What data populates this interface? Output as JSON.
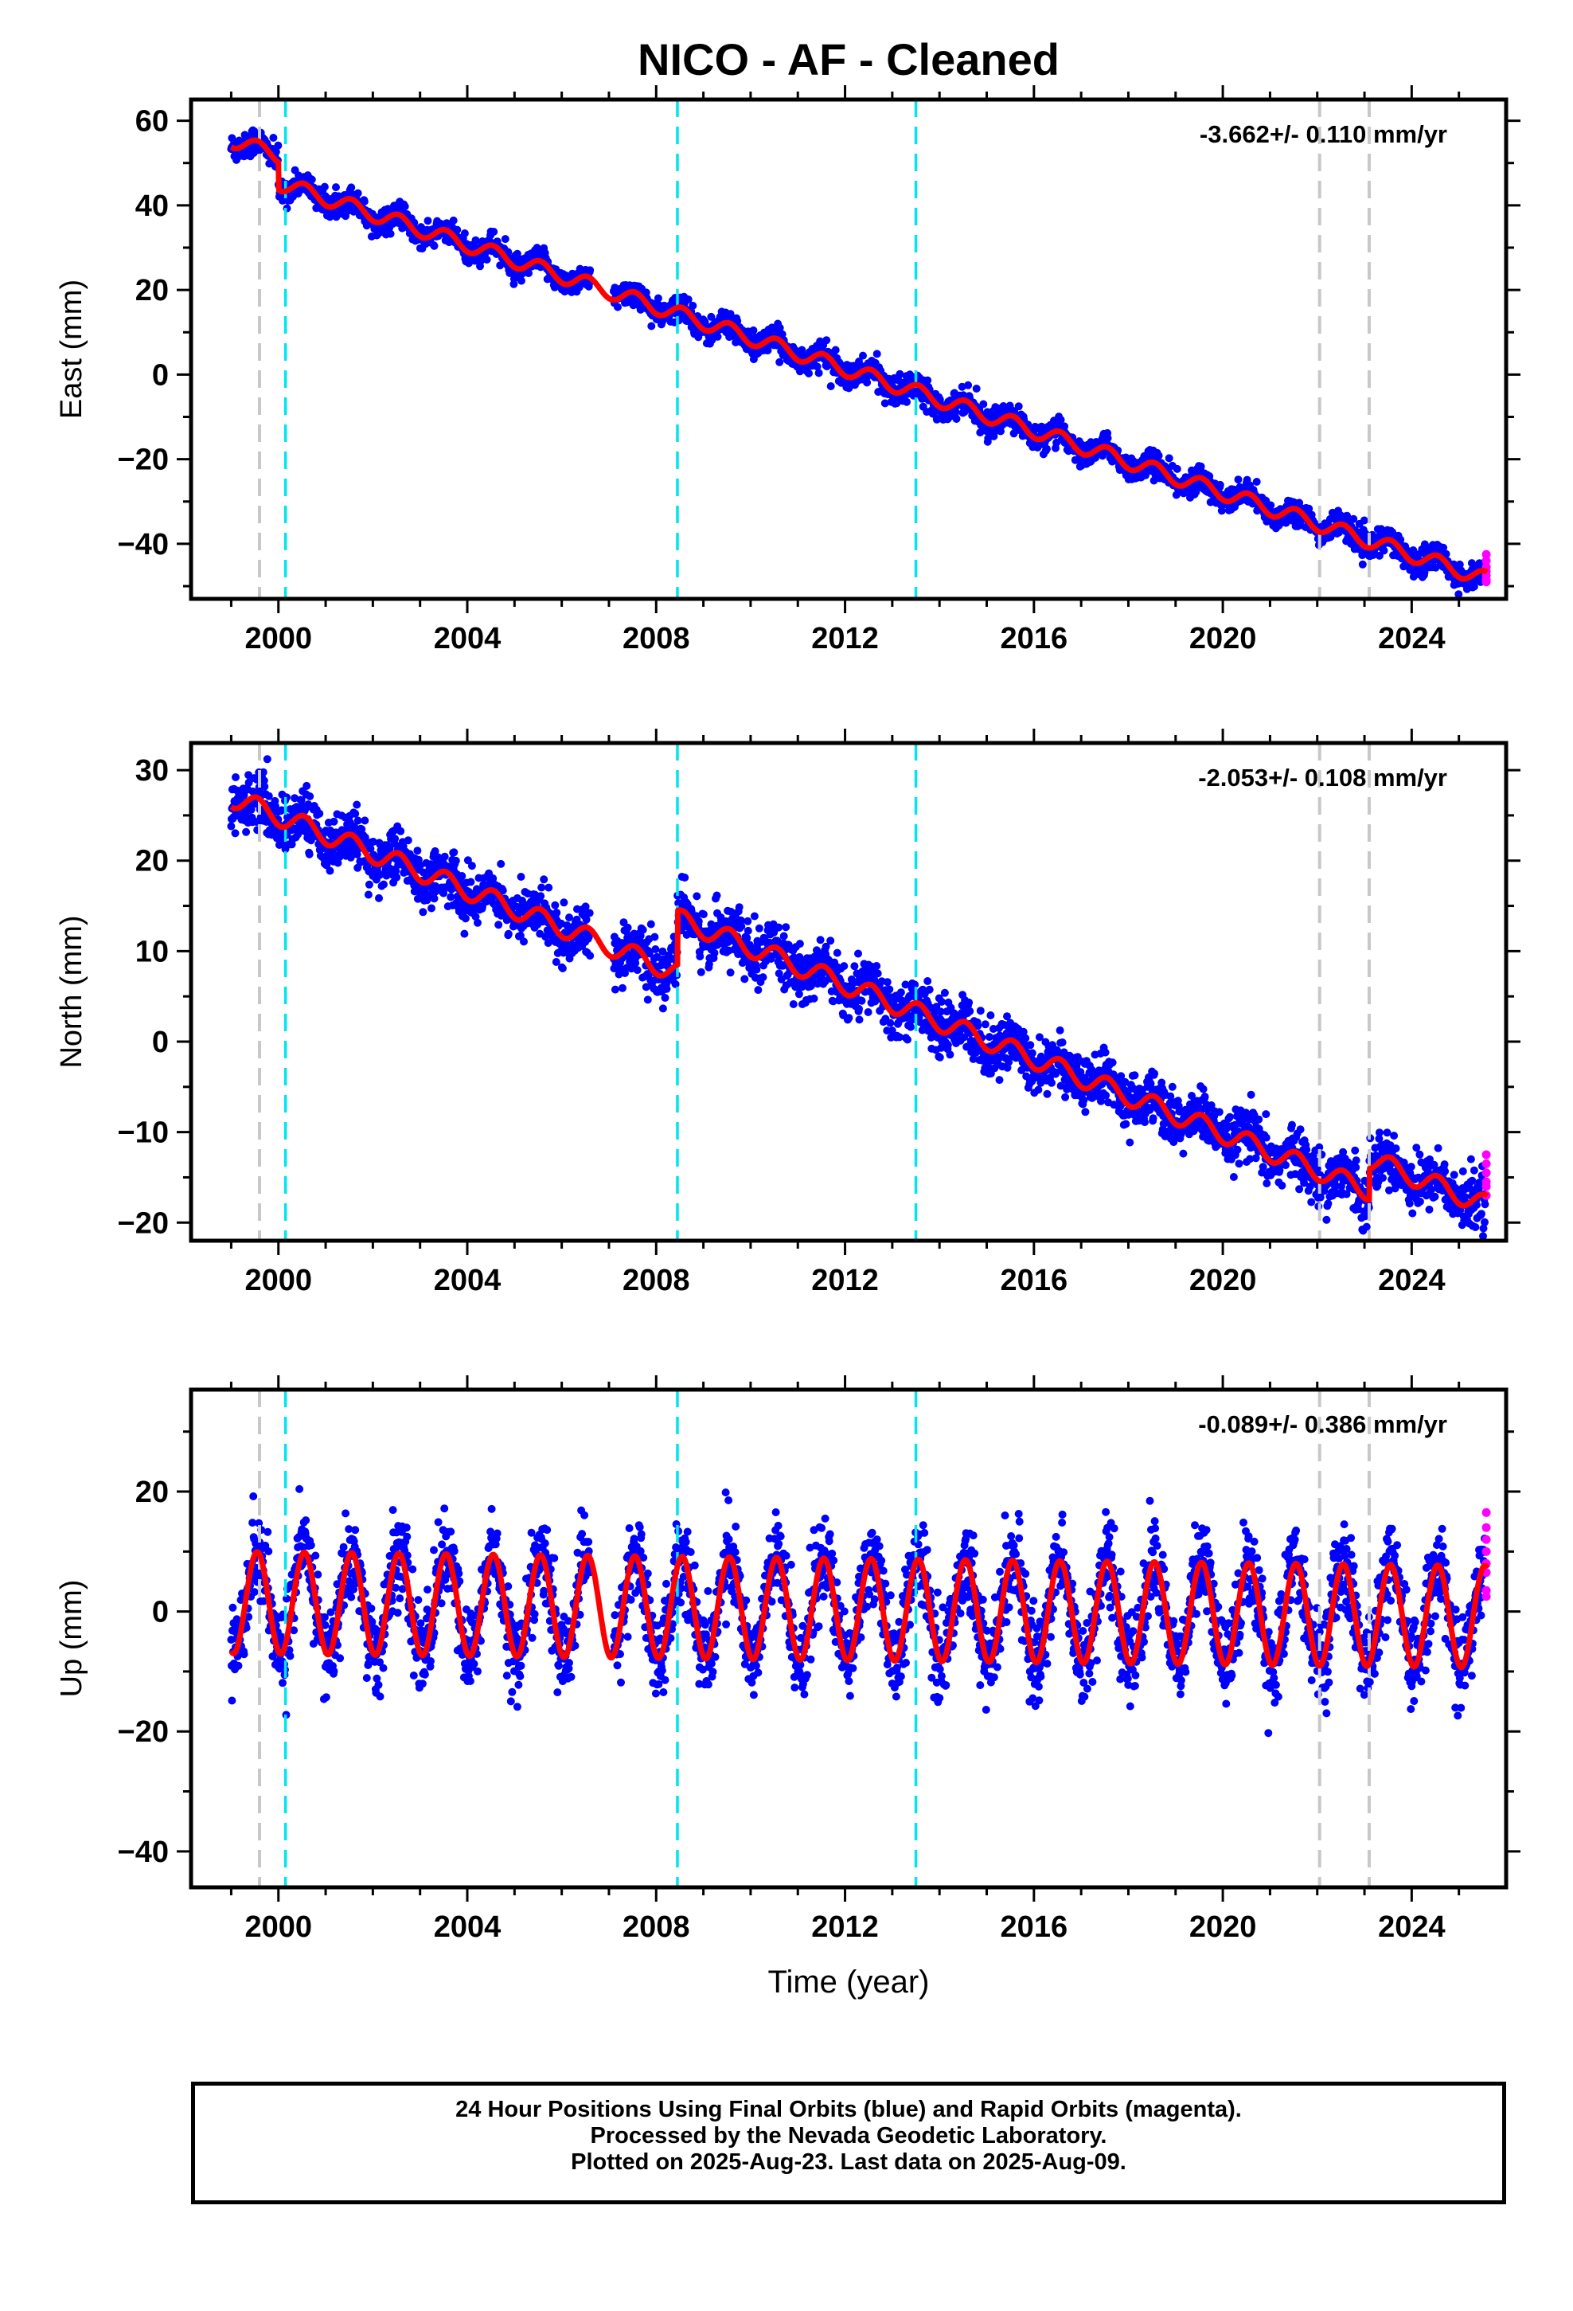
{
  "title": "NICO  - AF - Cleaned",
  "xlabel": "Time (year)",
  "footer": {
    "line1": "24 Hour Positions Using Final Orbits (blue) and Rapid Orbits (magenta).",
    "line2": "Processed by the Nevada Geodetic Laboratory.",
    "line3": "Plotted on 2025-Aug-23. Last data on 2025-Aug-09."
  },
  "colors": {
    "final_orbits": "#0000ff",
    "rapid_orbits": "#ff00ff",
    "model": "#ff0000",
    "antenna_change": "#c8c8c8",
    "earthquake": "#00e5ee"
  },
  "chart_data": [
    {
      "type": "scatter",
      "component": "east",
      "ylabel": "East (mm)",
      "rate_label": "-3.662+/- 0.110 mm/yr",
      "rate": -3.662,
      "rate_sigma": 0.11,
      "xlim": [
        1998.15,
        2026.0
      ],
      "ylim": [
        -53,
        65
      ],
      "xticks": [
        2000,
        2004,
        2008,
        2012,
        2016,
        2020,
        2024
      ],
      "yticks": [
        60,
        40,
        20,
        0,
        -20,
        -40
      ],
      "grid": false,
      "model_anchor": {
        "x": 1999.0,
        "y": 55.5
      },
      "seasonal_amplitude": 1.8,
      "steps": [
        {
          "x": 2000.0,
          "dy": -6.5
        }
      ],
      "scatter_sigma": 1.8,
      "rapid_points": [
        -42.5,
        -44.0,
        -45.5,
        -46.5,
        -47.5,
        -48.5,
        -49.0
      ]
    },
    {
      "type": "scatter",
      "component": "north",
      "ylabel": "North (mm)",
      "rate_label": "-2.053+/- 0.108 mm/yr",
      "rate": -2.053,
      "rate_sigma": 0.108,
      "xlim": [
        1998.15,
        2026.0
      ],
      "ylim": [
        -22,
        33
      ],
      "xticks": [
        2000,
        2004,
        2008,
        2012,
        2016,
        2020,
        2024
      ],
      "yticks": [
        30,
        20,
        10,
        0,
        -10,
        -20
      ],
      "grid": false,
      "model_anchor": {
        "x": 1999.0,
        "y": 27.0
      },
      "seasonal_amplitude": 1.1,
      "steps": [
        {
          "x": 2008.45,
          "dy": 6.0
        },
        {
          "x": 2023.1,
          "dy": 3.5
        }
      ],
      "scatter_sigma": 1.8,
      "rapid_points": [
        -12.5,
        -13.5,
        -14.5,
        -15.5,
        -16.0,
        -17.0
      ]
    },
    {
      "type": "scatter",
      "component": "up",
      "ylabel": "Up (mm)",
      "rate_label": "-0.089+/- 0.386 mm/yr",
      "rate": -0.089,
      "rate_sigma": 0.386,
      "xlim": [
        1998.15,
        2026.0
      ],
      "ylim": [
        -46,
        37
      ],
      "xticks": [
        2000,
        2004,
        2008,
        2012,
        2016,
        2020,
        2024
      ],
      "yticks": [
        20,
        0,
        -20,
        -40
      ],
      "grid": false,
      "model_anchor": {
        "x": 1999.0,
        "y": 1.5
      },
      "seasonal_amplitude": 8.5,
      "steps": [],
      "scatter_sigma": 4.5,
      "rapid_points": [
        16.5,
        14.0,
        12.0,
        10.0,
        8.0,
        6.5,
        3.5,
        2.5
      ]
    }
  ],
  "events": {
    "antenna_changes": [
      1999.6,
      2022.05,
      2023.1
    ],
    "earthquakes": [
      2000.15,
      2008.45,
      2013.5
    ]
  },
  "data_span": {
    "start": 1999.0,
    "end": 2025.6
  },
  "data_gap": {
    "start": 2006.6,
    "end": 2007.1
  }
}
